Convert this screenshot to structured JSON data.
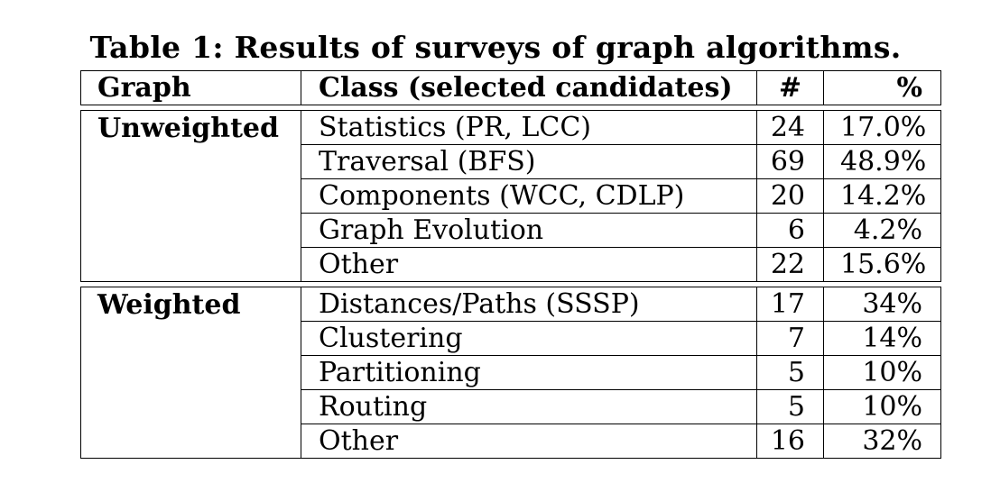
{
  "caption": "Table 1: Results of surveys of graph algorithms.",
  "headers": [
    "Graph",
    "Class (selected candidates)",
    "#",
    "%"
  ],
  "groups": [
    {
      "graph": "Unweighted",
      "rows": [
        {
          "class": "Statistics (PR, LCC)",
          "count": "24",
          "pct": "17.0%"
        },
        {
          "class": "Traversal (BFS)",
          "count": "69",
          "pct": "48.9%"
        },
        {
          "class": "Components (WCC, CDLP)",
          "count": "20",
          "pct": "14.2%"
        },
        {
          "class": "Graph Evolution",
          "count": "6",
          "pct": "4.2%"
        },
        {
          "class": "Other",
          "count": "22",
          "pct": "15.6%"
        }
      ]
    },
    {
      "graph": "Weighted",
      "rows": [
        {
          "class": "Distances/Paths (SSSP)",
          "count": "17",
          "pct": "34%"
        },
        {
          "class": "Clustering",
          "count": "7",
          "pct": "14%"
        },
        {
          "class": "Partitioning",
          "count": "5",
          "pct": "10%"
        },
        {
          "class": "Routing",
          "count": "5",
          "pct": "10%"
        },
        {
          "class": "Other",
          "count": "16",
          "pct": "32%"
        }
      ]
    }
  ]
}
